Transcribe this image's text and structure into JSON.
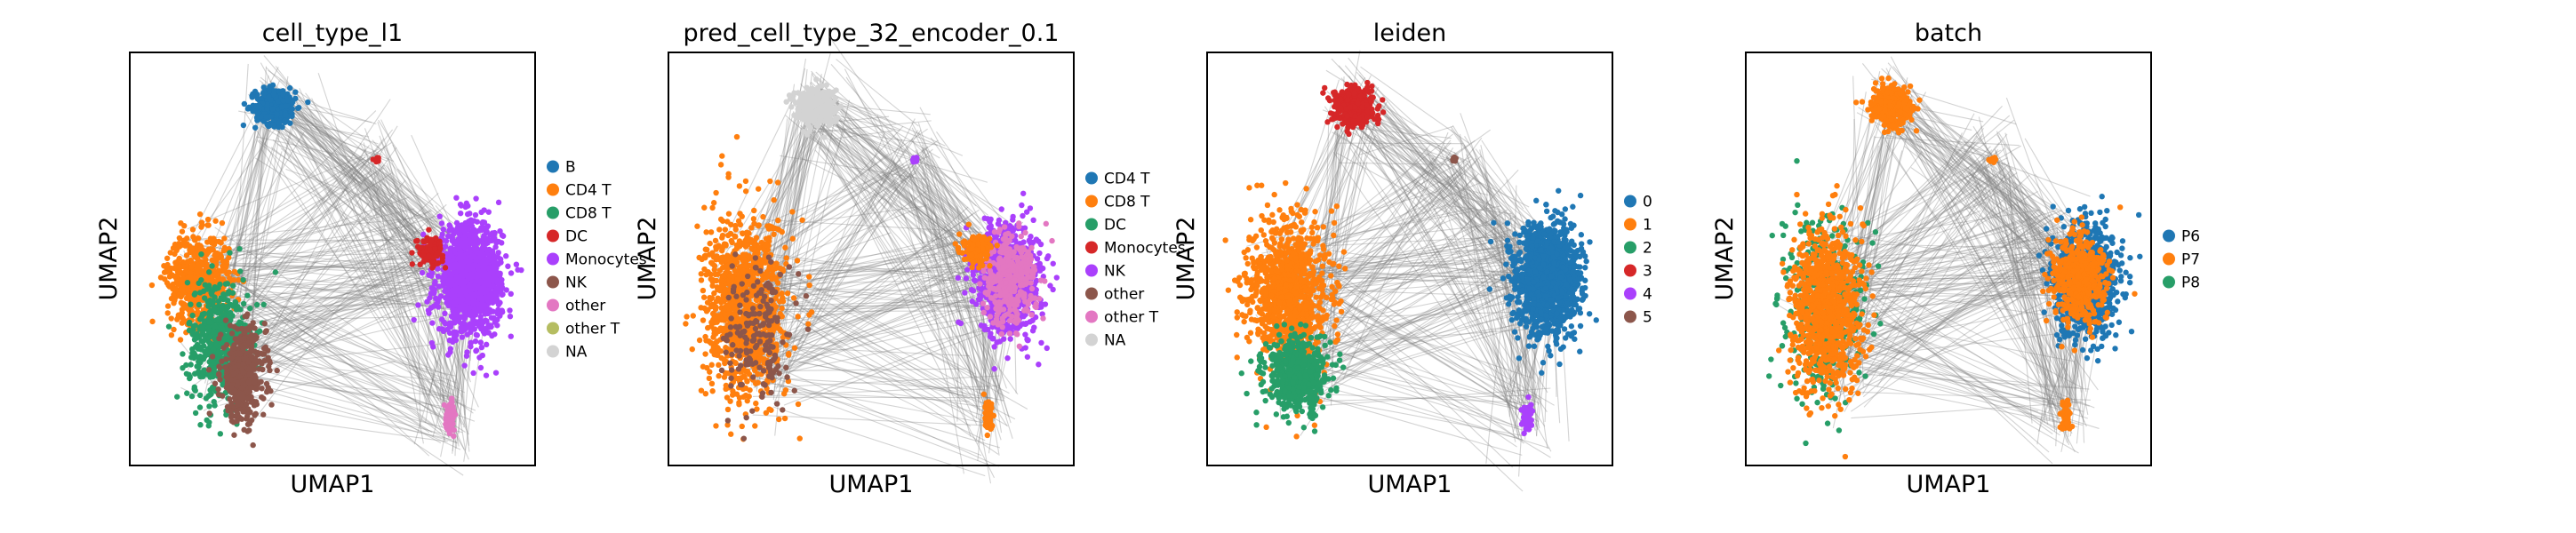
{
  "chart_data": [
    {
      "type": "scatter",
      "title": "cell_type_l1",
      "xlabel": "UMAP1",
      "ylabel": "UMAP2",
      "legend_position": "right",
      "grid": false,
      "legend": [
        {
          "label": "B",
          "color": "#1f77b4"
        },
        {
          "label": "CD4 T",
          "color": "#ff7f0e"
        },
        {
          "label": "CD8 T",
          "color": "#279e68"
        },
        {
          "label": "DC",
          "color": "#d62728"
        },
        {
          "label": "Monocytes",
          "color": "#aa40fc"
        },
        {
          "label": "NK",
          "color": "#8c564b"
        },
        {
          "label": "other",
          "color": "#e377c2"
        },
        {
          "label": "other T",
          "color": "#b5bd61"
        },
        {
          "label": "NA",
          "color": "#d3d3d3"
        }
      ],
      "clusters": [
        {
          "color": "#1f77b4",
          "x": 0.36,
          "y": 0.87,
          "rx": 0.045,
          "ry": 0.04,
          "n": 380
        },
        {
          "color": "#ff7f0e",
          "x": 0.17,
          "y": 0.45,
          "rx": 0.07,
          "ry": 0.1,
          "n": 600
        },
        {
          "color": "#279e68",
          "x": 0.22,
          "y": 0.3,
          "rx": 0.07,
          "ry": 0.14,
          "n": 500
        },
        {
          "color": "#8c564b",
          "x": 0.28,
          "y": 0.22,
          "rx": 0.05,
          "ry": 0.1,
          "n": 450
        },
        {
          "color": "#aa40fc",
          "x": 0.84,
          "y": 0.45,
          "rx": 0.07,
          "ry": 0.12,
          "n": 1300
        },
        {
          "color": "#d62728",
          "x": 0.74,
          "y": 0.52,
          "rx": 0.03,
          "ry": 0.03,
          "n": 120
        },
        {
          "color": "#e377c2",
          "x": 0.79,
          "y": 0.12,
          "rx": 0.01,
          "ry": 0.03,
          "n": 80
        },
        {
          "color": "#d62728",
          "x": 0.61,
          "y": 0.74,
          "rx": 0.006,
          "ry": 0.006,
          "n": 12
        }
      ]
    },
    {
      "type": "scatter",
      "title": "pred_cell_type_32_encoder_0.1",
      "xlabel": "UMAP1",
      "ylabel": "UMAP2",
      "legend_position": "right",
      "grid": false,
      "legend": [
        {
          "label": "CD4 T",
          "color": "#1f77b4"
        },
        {
          "label": "CD8 T",
          "color": "#ff7f0e"
        },
        {
          "label": "DC",
          "color": "#279e68"
        },
        {
          "label": "Monocytes",
          "color": "#d62728"
        },
        {
          "label": "NK",
          "color": "#aa40fc"
        },
        {
          "label": "other",
          "color": "#8c564b"
        },
        {
          "label": "other T",
          "color": "#e377c2"
        },
        {
          "label": "NA",
          "color": "#d3d3d3"
        }
      ],
      "clusters": [
        {
          "color": "#d3d3d3",
          "x": 0.36,
          "y": 0.87,
          "rx": 0.045,
          "ry": 0.04,
          "n": 380
        },
        {
          "color": "#ff7f0e",
          "x": 0.19,
          "y": 0.38,
          "rx": 0.09,
          "ry": 0.2,
          "n": 1100
        },
        {
          "color": "#8c564b",
          "x": 0.22,
          "y": 0.32,
          "rx": 0.07,
          "ry": 0.15,
          "n": 180
        },
        {
          "color": "#aa40fc",
          "x": 0.84,
          "y": 0.45,
          "rx": 0.07,
          "ry": 0.12,
          "n": 900
        },
        {
          "color": "#e377c2",
          "x": 0.84,
          "y": 0.45,
          "rx": 0.06,
          "ry": 0.1,
          "n": 350
        },
        {
          "color": "#ff7f0e",
          "x": 0.76,
          "y": 0.52,
          "rx": 0.03,
          "ry": 0.03,
          "n": 150
        },
        {
          "color": "#ff7f0e",
          "x": 0.79,
          "y": 0.12,
          "rx": 0.01,
          "ry": 0.03,
          "n": 70
        },
        {
          "color": "#aa40fc",
          "x": 0.61,
          "y": 0.74,
          "rx": 0.006,
          "ry": 0.006,
          "n": 12
        }
      ]
    },
    {
      "type": "scatter",
      "title": "leiden",
      "xlabel": "UMAP1",
      "ylabel": "UMAP2",
      "legend_position": "right",
      "grid": false,
      "legend": [
        {
          "label": "0",
          "color": "#1f77b4"
        },
        {
          "label": "1",
          "color": "#ff7f0e"
        },
        {
          "label": "2",
          "color": "#279e68"
        },
        {
          "label": "3",
          "color": "#d62728"
        },
        {
          "label": "4",
          "color": "#aa40fc"
        },
        {
          "label": "5",
          "color": "#8c564b"
        }
      ],
      "clusters": [
        {
          "color": "#d62728",
          "x": 0.36,
          "y": 0.87,
          "rx": 0.045,
          "ry": 0.04,
          "n": 380
        },
        {
          "color": "#ff7f0e",
          "x": 0.2,
          "y": 0.42,
          "rx": 0.09,
          "ry": 0.16,
          "n": 1000
        },
        {
          "color": "#279e68",
          "x": 0.22,
          "y": 0.22,
          "rx": 0.07,
          "ry": 0.08,
          "n": 550
        },
        {
          "color": "#1f77b4",
          "x": 0.84,
          "y": 0.45,
          "rx": 0.07,
          "ry": 0.12,
          "n": 1400
        },
        {
          "color": "#aa40fc",
          "x": 0.79,
          "y": 0.12,
          "rx": 0.01,
          "ry": 0.03,
          "n": 80
        },
        {
          "color": "#8c564b",
          "x": 0.61,
          "y": 0.74,
          "rx": 0.006,
          "ry": 0.006,
          "n": 12
        }
      ]
    },
    {
      "type": "scatter",
      "title": "batch",
      "xlabel": "UMAP1",
      "ylabel": "UMAP2",
      "legend_position": "right",
      "grid": false,
      "legend": [
        {
          "label": "P6",
          "color": "#1f77b4"
        },
        {
          "label": "P7",
          "color": "#ff7f0e"
        },
        {
          "label": "P8",
          "color": "#279e68"
        }
      ],
      "clusters": [
        {
          "color": "#ff7f0e",
          "x": 0.36,
          "y": 0.87,
          "rx": 0.045,
          "ry": 0.04,
          "n": 380
        },
        {
          "color": "#279e68",
          "x": 0.19,
          "y": 0.38,
          "rx": 0.09,
          "ry": 0.2,
          "n": 400
        },
        {
          "color": "#ff7f0e",
          "x": 0.2,
          "y": 0.38,
          "rx": 0.08,
          "ry": 0.18,
          "n": 900
        },
        {
          "color": "#1f77b4",
          "x": 0.84,
          "y": 0.45,
          "rx": 0.07,
          "ry": 0.12,
          "n": 900
        },
        {
          "color": "#ff7f0e",
          "x": 0.82,
          "y": 0.45,
          "rx": 0.06,
          "ry": 0.1,
          "n": 500
        },
        {
          "color": "#ff7f0e",
          "x": 0.79,
          "y": 0.12,
          "rx": 0.01,
          "ry": 0.03,
          "n": 70
        },
        {
          "color": "#ff7f0e",
          "x": 0.61,
          "y": 0.74,
          "rx": 0.006,
          "ry": 0.006,
          "n": 12
        }
      ]
    }
  ],
  "edge_color": "#808080"
}
